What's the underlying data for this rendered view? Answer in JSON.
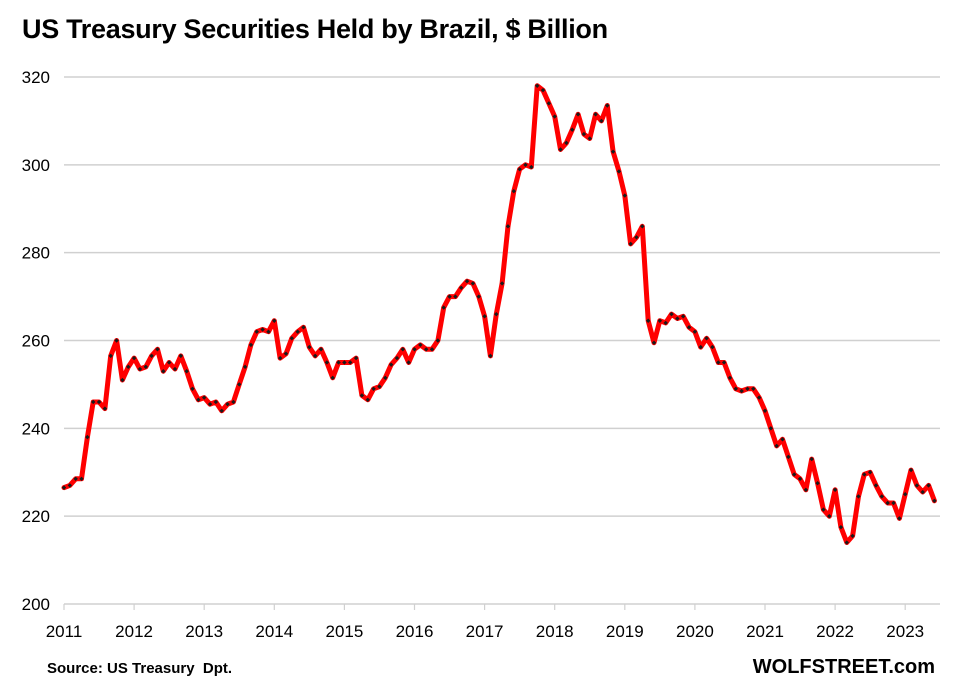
{
  "title": "US Treasury Securities Held by Brazil, $ Billion",
  "footer": {
    "source": "Source: US Treasury  Dpt.",
    "brand": "WOLFSTREET.com"
  },
  "colors": {
    "line": "#ff0000",
    "marker": "#1a1a1a",
    "grid": "#d0d0d0"
  },
  "chart_data": {
    "type": "line",
    "title": "US Treasury Securities Held by Brazil, $ Billion",
    "xlabel": "",
    "ylabel": "",
    "ylim": [
      200,
      320
    ],
    "yticks": [
      "200",
      "220",
      "240",
      "260",
      "280",
      "300",
      "320"
    ],
    "xticks": [
      "2011",
      "2012",
      "2013",
      "2014",
      "2015",
      "2016",
      "2017",
      "2018",
      "2019",
      "2020",
      "2021",
      "2022",
      "2023"
    ],
    "grid": true,
    "legend": "none",
    "x_start": "2011-01",
    "x_frequency": "monthly",
    "series": [
      {
        "name": "US Treasury Securities Held by Brazil",
        "values": [
          226.5,
          227,
          228.5,
          228.5,
          238,
          246,
          246,
          244.5,
          256.5,
          260,
          251,
          254,
          256,
          253.5,
          254,
          256.5,
          258,
          253,
          255,
          253.5,
          256.5,
          253,
          249,
          246.5,
          247,
          245.5,
          246,
          244,
          245.5,
          246,
          250,
          254,
          259,
          262,
          262.5,
          262,
          264.5,
          256,
          257,
          260.5,
          262,
          263,
          258.5,
          256.5,
          258,
          255,
          251.5,
          255,
          255,
          255,
          256,
          247.5,
          246.5,
          249,
          249.5,
          251.5,
          254.5,
          256,
          258,
          255,
          258,
          259,
          258,
          258,
          260,
          267.5,
          270,
          270,
          272,
          273.5,
          273,
          270,
          265.5,
          256.5,
          266,
          273,
          286,
          294,
          299,
          300,
          299.5,
          318,
          317,
          314,
          311,
          303.5,
          305,
          308,
          311.5,
          307,
          306,
          311.5,
          310,
          313.5,
          303,
          298.5,
          293,
          282,
          283.5,
          286,
          264.5,
          259.5,
          264.5,
          264,
          266,
          265,
          265.5,
          263,
          262,
          258.5,
          260.5,
          258.5,
          255,
          255,
          251.5,
          249,
          248.5,
          249,
          249,
          247,
          244,
          240,
          236,
          237.5,
          233.5,
          229.5,
          228.5,
          226,
          233,
          227.5,
          221.5,
          220,
          226,
          217.5,
          214,
          215.5,
          224.5,
          229.5,
          230,
          227,
          224.5,
          223,
          223,
          219.5,
          225,
          230.5,
          227,
          225.5,
          227,
          223.5
        ]
      }
    ]
  }
}
